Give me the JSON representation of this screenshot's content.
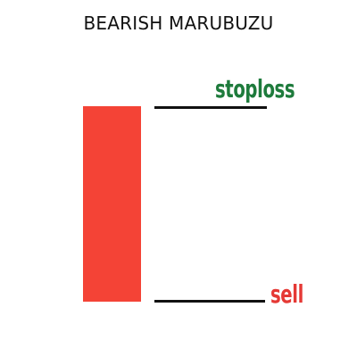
{
  "title": "BEARISH MARUBUZU",
  "labels": {
    "stoploss": "stoploss",
    "sell": "sell"
  },
  "colors": {
    "candle": "#f44336",
    "stoploss_label": "#1e7b3c",
    "sell_label": "#e53935",
    "level_line": "#111111"
  }
}
